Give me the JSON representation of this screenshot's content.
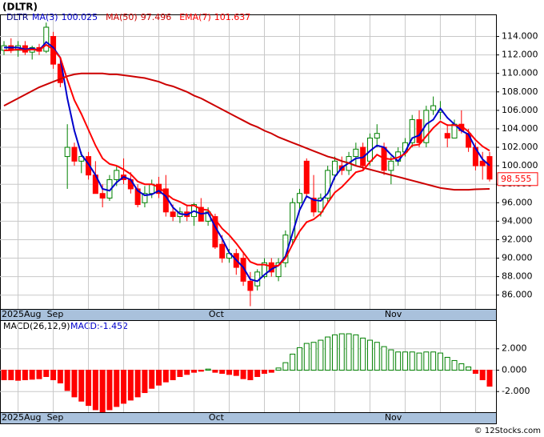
{
  "chart_data": [
    {
      "type": "candlestick",
      "title": "(DLTR)",
      "symbol": "DLTR",
      "categories": [
        "2025Aug",
        null,
        null,
        null,
        null,
        null,
        null,
        "Sep",
        null,
        null,
        null,
        null,
        null,
        null,
        null,
        null,
        null,
        null,
        null,
        null,
        null,
        null,
        null,
        null,
        null,
        null,
        null,
        null,
        null,
        null,
        "Oct",
        null,
        null,
        null,
        null,
        null,
        null,
        null,
        null,
        null,
        null,
        null,
        null,
        null,
        null,
        null,
        null,
        null,
        null,
        null,
        null,
        null,
        null,
        null,
        null,
        "Nov",
        null,
        null,
        null,
        null,
        null,
        null,
        null,
        null,
        null,
        null,
        null,
        null,
        null,
        null
      ],
      "open": [
        112.5,
        113,
        112.5,
        113,
        112.3,
        112.8,
        112.4,
        114,
        111,
        101,
        102,
        100.5,
        101,
        99,
        97,
        96.5,
        98.5,
        99,
        98.5,
        97.5,
        96,
        97,
        98,
        97.5,
        95,
        94.5,
        95,
        94.5,
        95.5,
        94,
        94.5,
        91.5,
        90,
        90.5,
        90,
        87.5,
        87,
        88,
        89.5,
        88,
        89.5,
        92,
        96,
        100.5,
        96.5,
        95,
        96.5,
        99,
        100,
        99.5,
        101,
        102,
        100.5,
        103,
        102,
        99.5,
        100.5,
        101.5,
        102.5,
        105,
        102.5,
        106,
        105.8,
        103.5,
        103,
        104.5,
        103.5,
        102,
        100.5,
        101
      ],
      "high": [
        113.5,
        113.8,
        113.5,
        113.5,
        113,
        113.2,
        115.5,
        114.5,
        111.5,
        104.5,
        102.5,
        101.5,
        101.5,
        100.5,
        98,
        99,
        100,
        100.8,
        99.3,
        98,
        97.8,
        98.5,
        98.8,
        99,
        95.8,
        95.5,
        95.8,
        96,
        96.5,
        95.5,
        94.8,
        92.5,
        91,
        91,
        90.5,
        88.5,
        88.8,
        90,
        90,
        90,
        93,
        96.5,
        97.5,
        100.8,
        99,
        97,
        100,
        101,
        101,
        101.5,
        102.5,
        102.5,
        103.5,
        104.5,
        102.5,
        101,
        102,
        103,
        105.5,
        106,
        106.5,
        107.5,
        107,
        104.5,
        105,
        106,
        104,
        102.5,
        101.5,
        101.5
      ],
      "low": [
        112,
        112.2,
        111.8,
        112,
        111.5,
        112,
        112.2,
        110.5,
        108.5,
        97.5,
        100,
        99.2,
        98.5,
        97,
        95.5,
        96.2,
        97.8,
        98,
        97,
        95.5,
        95.5,
        96.5,
        96.5,
        94.5,
        94,
        93.8,
        94,
        93.5,
        94,
        93.5,
        91,
        89.5,
        89.5,
        88.2,
        87,
        84.8,
        86.5,
        87.8,
        88,
        87.5,
        89,
        91.5,
        95,
        96.5,
        94.5,
        94.5,
        96,
        98.5,
        99,
        99,
        100,
        99.5,
        100,
        102,
        99,
        98,
        100,
        101,
        102,
        102,
        102,
        105.5,
        105,
        102,
        103,
        103.5,
        101.5,
        99.5,
        98.5,
        98.3
      ],
      "close": [
        113,
        112.5,
        113,
        112.3,
        112.8,
        112.4,
        115,
        111,
        109,
        102,
        100.5,
        101,
        99,
        97,
        96.5,
        98.5,
        99.5,
        98.5,
        97.5,
        95.8,
        97,
        98,
        97,
        95,
        94.5,
        95,
        94.5,
        95.8,
        94,
        95,
        91.2,
        90,
        90.5,
        89,
        87.5,
        86.5,
        88.5,
        89.5,
        88.5,
        89.5,
        92.5,
        96,
        97,
        97,
        95,
        96.5,
        99.5,
        100.5,
        99.5,
        101,
        101.8,
        100,
        103,
        103.5,
        99.5,
        100.5,
        101.5,
        102.5,
        105,
        102.5,
        106,
        106.5,
        106,
        103,
        104.5,
        103.8,
        102,
        100,
        100,
        98.555
      ],
      "up_color": "#008000",
      "down_color": "#ff0000",
      "series": [
        {
          "name": "MA(3)",
          "color": "#0000cc",
          "values": [
            112.8,
            112.8,
            112.8,
            112.6,
            112.7,
            112.5,
            113.4,
            112.8,
            111.7,
            107.3,
            103.8,
            101.2,
            100.2,
            99,
            97.5,
            97.3,
            98.2,
            98.8,
            98.5,
            97.3,
            96.8,
            96.9,
            97.3,
            96.7,
            95.5,
            94.8,
            94.7,
            95.1,
            94.8,
            94.9,
            93.4,
            92.1,
            90.6,
            89.8,
            89,
            87.7,
            87.5,
            88.2,
            88.8,
            89.2,
            90.2,
            92.7,
            95.2,
            96.7,
            96.3,
            96.2,
            97,
            98.8,
            99.8,
            100.3,
            100.8,
            100.9,
            101.6,
            102.2,
            102,
            101.2,
            100.5,
            101.5,
            103,
            103.3,
            104.5,
            105,
            106.2,
            105.2,
            104.5,
            103.8,
            103.4,
            101.9,
            100.7,
            100.025
          ]
        },
        {
          "name": "MA(50)",
          "color": "#cc0000",
          "values": [
            106.5,
            106.9,
            107.3,
            107.7,
            108.1,
            108.5,
            108.8,
            109.1,
            109.4,
            109.7,
            109.9,
            110,
            110,
            110,
            110,
            109.9,
            109.9,
            109.8,
            109.7,
            109.6,
            109.5,
            109.3,
            109.1,
            108.8,
            108.6,
            108.3,
            108,
            107.6,
            107.3,
            106.9,
            106.5,
            106.1,
            105.7,
            105.3,
            104.9,
            104.5,
            104.2,
            103.8,
            103.5,
            103.1,
            102.8,
            102.5,
            102.2,
            101.9,
            101.6,
            101.3,
            101,
            100.8,
            100.5,
            100.3,
            100,
            99.8,
            99.6,
            99.4,
            99.2,
            99,
            98.8,
            98.6,
            98.4,
            98.2,
            98,
            97.8,
            97.6,
            97.5,
            97.4,
            97.4,
            97.4,
            97.45,
            97.48,
            97.496
          ]
        },
        {
          "name": "EMA(7)",
          "color": "#ff0000",
          "values": [
            112.5,
            112.5,
            112.6,
            112.5,
            112.6,
            112.5,
            113.1,
            112.6,
            111.7,
            109.3,
            107.1,
            105.6,
            103.9,
            102.2,
            100.8,
            100.2,
            100,
            99.6,
            99.1,
            98.3,
            98,
            98,
            97.7,
            97,
            96.4,
            96.1,
            95.7,
            95.7,
            95.3,
            95.2,
            94.2,
            93.2,
            92.5,
            91.6,
            90.6,
            89.6,
            89.3,
            89.3,
            89.1,
            89.2,
            90,
            91.5,
            92.9,
            93.9,
            94.2,
            94.8,
            96,
            97.1,
            97.7,
            98.5,
            99.3,
            99.5,
            100.4,
            101.2,
            100.8,
            100.7,
            100.9,
            101.3,
            102.2,
            102.3,
            103.2,
            104.1,
            104.8,
            104.4,
            104.4,
            104.3,
            103.7,
            102.8,
            102.1,
            101.637
          ]
        }
      ],
      "ylim": [
        84.5,
        116.3
      ],
      "yticks": [
        {
          "value": 86,
          "label": "86.000"
        },
        {
          "value": 88,
          "label": "88.000"
        },
        {
          "value": 90,
          "label": "90.000"
        },
        {
          "value": 92,
          "label": "92.000"
        },
        {
          "value": 94,
          "label": "94.000"
        },
        {
          "value": 96,
          "label": "96.000"
        },
        {
          "value": 98,
          "label": "98.000"
        },
        {
          "value": 100,
          "label": "100.000"
        },
        {
          "value": 102,
          "label": "102.000"
        },
        {
          "value": 104,
          "label": "104.000"
        },
        {
          "value": 106,
          "label": "106.000"
        },
        {
          "value": 108,
          "label": "108.000"
        },
        {
          "value": 110,
          "label": "110.000"
        },
        {
          "value": 112,
          "label": "112.000"
        },
        {
          "value": 114,
          "label": "114.000"
        }
      ],
      "grid": true
    },
    {
      "type": "bar",
      "title": "MACD(26,12,9)",
      "value_label": "MACD:-1.452",
      "categories": [
        "2025Aug",
        null,
        null,
        null,
        null,
        null,
        null,
        "Sep",
        null,
        null,
        null,
        null,
        null,
        null,
        null,
        null,
        null,
        null,
        null,
        null,
        null,
        null,
        null,
        null,
        null,
        null,
        null,
        null,
        null,
        null,
        "Oct",
        null,
        null,
        null,
        null,
        null,
        null,
        null,
        null,
        null,
        null,
        null,
        null,
        null,
        null,
        null,
        null,
        null,
        null,
        null,
        null,
        null,
        null,
        null,
        null,
        "Nov",
        null,
        null,
        null,
        null,
        null,
        null,
        null,
        null,
        null,
        null,
        null,
        null,
        null,
        null
      ],
      "values": [
        -0.9,
        -0.9,
        -0.95,
        -0.9,
        -0.85,
        -0.8,
        -0.6,
        -0.9,
        -1.2,
        -1.9,
        -2.5,
        -2.9,
        -3.3,
        -3.7,
        -3.9,
        -3.7,
        -3.4,
        -3.1,
        -2.8,
        -2.5,
        -2.1,
        -1.7,
        -1.4,
        -1.1,
        -0.9,
        -0.6,
        -0.4,
        -0.2,
        -0.1,
        0.1,
        -0.2,
        -0.3,
        -0.4,
        -0.5,
        -0.8,
        -0.9,
        -0.6,
        -0.3,
        -0.2,
        0.2,
        0.7,
        1.5,
        2.1,
        2.5,
        2.6,
        2.8,
        3.1,
        3.3,
        3.4,
        3.4,
        3.3,
        3,
        2.8,
        2.6,
        2.2,
        1.9,
        1.7,
        1.7,
        1.7,
        1.6,
        1.7,
        1.7,
        1.6,
        1.2,
        0.9,
        0.6,
        0.3,
        -0.3,
        -0.9,
        -1.5
      ],
      "pos_color": "#008000",
      "neg_color": "#ff0000",
      "ylim": [
        -3.93,
        4.6
      ],
      "yticks": [
        {
          "value": 2,
          "label": "2.000"
        },
        {
          "value": 0,
          "label": "0.000"
        },
        {
          "value": -2,
          "label": "-2.000"
        }
      ],
      "grid": true
    }
  ],
  "footer": "© 12Stocks.com"
}
